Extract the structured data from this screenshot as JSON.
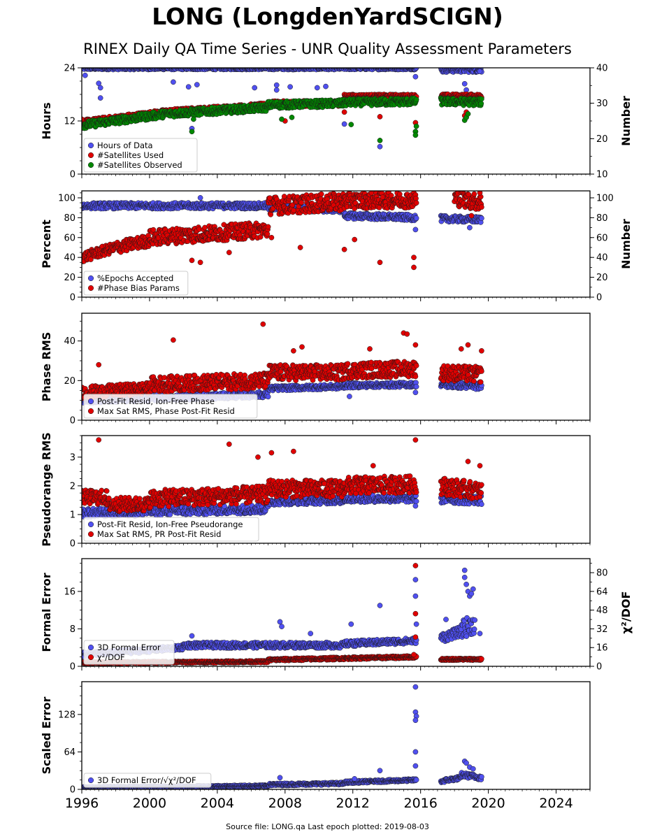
{
  "title": "LONG (LongdenYardSCIGN)",
  "subtitle": "RINEX Daily QA Time Series - UNR Quality Assessment Parameters",
  "footer": "Source file: LONG.qa Last epoch plotted: 2019-08-03",
  "colors": {
    "blue": "#5050f0",
    "red": "#e00000",
    "green": "#008800"
  },
  "chart_data": [
    {
      "type": "scatter",
      "ylabel": "Hours",
      "ylim": [
        0,
        24
      ],
      "yticks": [
        0,
        12,
        24
      ],
      "y2label": "Number",
      "y2lim": [
        10,
        40
      ],
      "y2ticks": [
        10,
        20,
        30,
        40
      ],
      "legend_position": "lower-left",
      "series": [
        {
          "name": "Hours of Data",
          "axis": "left",
          "color": "blue",
          "segments": [
            [
              1996.0,
              23.9,
              2015.75,
              23.9,
              0.3
            ],
            [
              2017.2,
              23.6,
              2019.6,
              23.6,
              0.6
            ]
          ],
          "points": [
            [
              1996.2,
              22.3
            ],
            [
              1997.0,
              20.5
            ],
            [
              1997.1,
              19.5
            ],
            [
              1997.1,
              17.2
            ],
            [
              2001.4,
              20.8
            ],
            [
              2002.3,
              19.7
            ],
            [
              2002.8,
              20.2
            ],
            [
              2002.5,
              10.3
            ],
            [
              2006.2,
              19.5
            ],
            [
              2007.5,
              19.0
            ],
            [
              2007.5,
              20.1
            ],
            [
              2008.3,
              19.7
            ],
            [
              2009.9,
              19.5
            ],
            [
              2010.4,
              19.8
            ],
            [
              2011.5,
              11.3
            ],
            [
              2013.6,
              6.2
            ],
            [
              2015.7,
              22.0
            ],
            [
              2018.6,
              20.4
            ],
            [
              2018.7,
              19.0
            ],
            [
              2019.5,
              23.2
            ]
          ]
        },
        {
          "name": "#Satellites Used",
          "axis": "right",
          "color": "red",
          "segments": [
            [
              1996.0,
              24.5,
              2001.0,
              27.5,
              0.8
            ],
            [
              2001.0,
              27.5,
              2007.0,
              29.3,
              0.8
            ],
            [
              2007.0,
              29.8,
              2011.5,
              30.0,
              0.8
            ],
            [
              2011.5,
              32.0,
              2015.75,
              32.0,
              0.5
            ],
            [
              2017.2,
              32.0,
              2019.6,
              32.0,
              0.6
            ]
          ],
          "points": [
            [
              1996.0,
              25.5
            ],
            [
              2008.0,
              25.0
            ],
            [
              2011.5,
              27.5
            ],
            [
              2013.6,
              26.2
            ],
            [
              2015.7,
              24.5
            ],
            [
              2015.7,
              22.0
            ],
            [
              2018.6,
              26.5
            ],
            [
              2018.7,
              27.5
            ]
          ]
        },
        {
          "name": "#Satellites Observed",
          "axis": "right",
          "color": "green",
          "segments": [
            [
              1996.0,
              23.8,
              2001.0,
              27.0,
              1.0
            ],
            [
              2001.0,
              27.0,
              2007.0,
              28.8,
              1.0
            ],
            [
              2007.0,
              29.5,
              2011.5,
              30.0,
              1.0
            ],
            [
              2011.5,
              30.2,
              2015.75,
              30.5,
              1.0
            ],
            [
              2017.2,
              30.5,
              2019.6,
              30.3,
              1.0
            ]
          ],
          "points": [
            [
              2002.5,
              22.0
            ],
            [
              2002.6,
              25.5
            ],
            [
              2007.8,
              25.5
            ],
            [
              2008.4,
              26.0
            ],
            [
              2011.9,
              24.0
            ],
            [
              2013.6,
              19.5
            ],
            [
              2015.7,
              22.0
            ],
            [
              2015.7,
              21.0
            ],
            [
              2015.75,
              23.5
            ],
            [
              2018.6,
              25.2
            ],
            [
              2018.7,
              26.0
            ],
            [
              2018.8,
              27.0
            ]
          ]
        }
      ]
    },
    {
      "type": "scatter",
      "ylabel": "Percent",
      "ylim": [
        0,
        107
      ],
      "yticks": [
        0,
        20,
        40,
        60,
        80,
        100
      ],
      "y2label": "Number",
      "y2lim": [
        0,
        107
      ],
      "y2ticks": [
        0,
        20,
        40,
        60,
        80,
        100
      ],
      "legend_position": "lower-left",
      "series": [
        {
          "name": "%Epochs Accepted",
          "axis": "left",
          "color": "blue",
          "segments": [
            [
              1996.0,
              92.0,
              2007.0,
              92.0,
              3.0
            ],
            [
              2007.0,
              90.0,
              2011.5,
              88.0,
              3.0
            ],
            [
              2011.5,
              82.0,
              2015.75,
              80.0,
              3.0
            ],
            [
              2017.2,
              79.0,
              2019.6,
              78.0,
              3.0
            ]
          ],
          "points": [
            [
              2003.0,
              100.0
            ],
            [
              2015.7,
              68.0
            ],
            [
              2015.7,
              96.0
            ],
            [
              2018.9,
              70.0
            ]
          ]
        },
        {
          "name": "#Phase Bias Params",
          "axis": "right",
          "color": "red",
          "segments": [
            [
              1996.0,
              40.0,
              1998.0,
              50.0,
              5.0
            ],
            [
              1998.0,
              50.0,
              2000.0,
              57.0,
              6.0
            ],
            [
              2000.0,
              60.0,
              2007.0,
              68.0,
              8.0
            ],
            [
              2007.0,
              92.0,
              2011.5,
              96.0,
              9.0
            ],
            [
              2011.5,
              97.0,
              2015.75,
              98.0,
              8.0
            ],
            [
              2018.0,
              100.0,
              2019.6,
              95.0,
              8.0
            ]
          ],
          "points": [
            [
              2003.0,
              35.0
            ],
            [
              2002.5,
              37.0
            ],
            [
              2004.7,
              45.0
            ],
            [
              2007.2,
              60.0
            ],
            [
              2008.9,
              50.0
            ],
            [
              2011.5,
              48.0
            ],
            [
              2012.1,
              58.0
            ],
            [
              2013.6,
              35.0
            ],
            [
              2015.6,
              40.0
            ],
            [
              2015.6,
              30.0
            ],
            [
              2019.0,
              82.0
            ],
            [
              2019.5,
              105.0
            ]
          ]
        }
      ]
    },
    {
      "type": "scatter",
      "ylabel": "Phase RMS",
      "ylim": [
        0,
        54
      ],
      "yticks": [
        0,
        20,
        40
      ],
      "legend_position": "lower-left",
      "series": [
        {
          "name": "Post-Fit Resid, Ion-Free Phase",
          "axis": "left",
          "color": "blue",
          "segments": [
            [
              1996.0,
              10.0,
              2007.0,
              13.0,
              1.5
            ],
            [
              2007.0,
              16.0,
              2011.5,
              17.0,
              1.2
            ],
            [
              2011.5,
              17.5,
              2015.75,
              18.0,
              1.2
            ],
            [
              2017.2,
              18.0,
              2019.6,
              17.0,
              1.5
            ]
          ],
          "points": [
            [
              2011.8,
              12.0
            ],
            [
              2015.7,
              14.0
            ]
          ]
        },
        {
          "name": "Max Sat RMS, Phase Post-Fit Resid",
          "axis": "left",
          "color": "red",
          "segments": [
            [
              1996.0,
              14.0,
              2000.0,
              16.0,
              3.0
            ],
            [
              2000.0,
              18.0,
              2007.0,
              20.0,
              4.0
            ],
            [
              2007.0,
              24.0,
              2011.5,
              24.0,
              4.0
            ],
            [
              2011.5,
              25.0,
              2015.75,
              26.0,
              4.0
            ],
            [
              2017.2,
              24.0,
              2019.6,
              23.0,
              4.0
            ]
          ],
          "points": [
            [
              1997.0,
              28.0
            ],
            [
              2001.4,
              40.5
            ],
            [
              2006.7,
              48.5
            ],
            [
              2008.5,
              35.0
            ],
            [
              2009.0,
              37.0
            ],
            [
              2013.0,
              36.0
            ],
            [
              2015.0,
              44.0
            ],
            [
              2015.2,
              43.5
            ],
            [
              2015.7,
              38.0
            ],
            [
              2018.4,
              36.0
            ],
            [
              2018.8,
              38.0
            ],
            [
              2019.6,
              35.0
            ]
          ]
        }
      ]
    },
    {
      "type": "scatter",
      "ylabel": "Pseudorange RMS",
      "ylim": [
        0,
        3.75
      ],
      "yticks": [
        0,
        1,
        2,
        3
      ],
      "legend_position": "lower-left",
      "series": [
        {
          "name": "Post-Fit Resid, Ion-Free Pseudorange",
          "axis": "left",
          "color": "blue",
          "segments": [
            [
              1996.0,
              1.05,
              2007.0,
              1.2,
              0.15
            ],
            [
              2007.0,
              1.45,
              2011.5,
              1.5,
              0.12
            ],
            [
              2011.5,
              1.55,
              2015.75,
              1.55,
              0.12
            ],
            [
              2017.2,
              1.55,
              2019.6,
              1.5,
              0.15
            ]
          ],
          "points": [
            [
              2015.7,
              1.3
            ]
          ]
        },
        {
          "name": "Max Sat RMS, PR Post-Fit Resid",
          "axis": "left",
          "color": "red",
          "segments": [
            [
              1996.0,
              1.6,
              1997.5,
              1.6,
              0.25
            ],
            [
              1997.5,
              1.35,
              2000.0,
              1.35,
              0.25
            ],
            [
              2000.0,
              1.55,
              2007.0,
              1.7,
              0.3
            ],
            [
              2007.0,
              1.9,
              2011.5,
              1.9,
              0.3
            ],
            [
              2011.5,
              2.0,
              2015.75,
              2.05,
              0.3
            ],
            [
              2017.2,
              2.0,
              2019.6,
              1.8,
              0.3
            ]
          ],
          "points": [
            [
              1997.0,
              3.6
            ],
            [
              2004.7,
              3.45
            ],
            [
              2006.4,
              3.0
            ],
            [
              2007.2,
              3.15
            ],
            [
              2008.5,
              3.2
            ],
            [
              2015.7,
              3.6
            ],
            [
              2013.2,
              2.7
            ],
            [
              2018.8,
              2.85
            ],
            [
              2019.5,
              2.7
            ]
          ]
        }
      ]
    },
    {
      "type": "scatter",
      "ylabel": "Formal Error",
      "ylim": [
        0,
        23
      ],
      "yticks": [
        0,
        8,
        16
      ],
      "y2label": "χ²/DOF",
      "y2lim": [
        0,
        92
      ],
      "y2ticks": [
        0,
        16,
        32,
        48,
        64,
        80
      ],
      "legend_position": "lower-left",
      "series": [
        {
          "name": "3D Formal Error",
          "axis": "left",
          "color": "blue",
          "segments": [
            [
              1996.0,
              2.5,
              2002.0,
              4.0,
              0.5
            ],
            [
              2002.0,
              4.5,
              2011.5,
              4.5,
              0.6
            ],
            [
              2011.5,
              4.8,
              2015.75,
              5.5,
              0.6
            ],
            [
              2017.2,
              6.0,
              2018.4,
              7.5,
              1.0
            ],
            [
              2018.4,
              8.0,
              2019.2,
              9.0,
              2.0
            ]
          ],
          "points": [
            [
              2002.5,
              6.5
            ],
            [
              2007.7,
              9.5
            ],
            [
              2007.8,
              8.5
            ],
            [
              2009.5,
              7.0
            ],
            [
              2011.9,
              9.0
            ],
            [
              2013.6,
              13.0
            ],
            [
              2015.7,
              18.5
            ],
            [
              2015.7,
              15.0
            ],
            [
              2015.75,
              9.0
            ],
            [
              2017.5,
              10.0
            ],
            [
              2018.6,
              20.5
            ],
            [
              2018.6,
              19.0
            ],
            [
              2018.7,
              17.5
            ],
            [
              2018.8,
              16.0
            ],
            [
              2018.9,
              15.0
            ],
            [
              2019.0,
              15.5
            ],
            [
              2019.1,
              16.5
            ],
            [
              2019.5,
              7.0
            ]
          ]
        },
        {
          "name": "χ²/DOF",
          "axis": "right",
          "color": "red",
          "segments": [
            [
              1996.0,
              3.0,
              2007.0,
              4.0,
              0.8
            ],
            [
              2007.0,
              5.5,
              2015.75,
              8.0,
              1.0
            ],
            [
              2017.2,
              6.0,
              2019.6,
              6.0,
              0.8
            ]
          ],
          "points": [
            [
              2015.7,
              86.0
            ],
            [
              2015.7,
              45.0
            ],
            [
              2015.7,
              25.0
            ],
            [
              2015.6,
              10.0
            ]
          ]
        }
      ]
    },
    {
      "type": "scatter",
      "ylabel": "Scaled Error",
      "ylim": [
        0,
        184
      ],
      "yticks": [
        0,
        64,
        128
      ],
      "legend_position": "lower-left",
      "series": [
        {
          "name": "3D Formal Error/√χ²/DOF",
          "axis": "left",
          "color": "blue",
          "segments": [
            [
              1996.0,
              3.0,
              2007.0,
              6.0,
              1.5
            ],
            [
              2007.0,
              8.0,
              2011.5,
              10.0,
              2.0
            ],
            [
              2011.5,
              12.0,
              2015.75,
              16.0,
              2.0
            ],
            [
              2017.2,
              14.0,
              2018.4,
              20.0,
              3.0
            ],
            [
              2018.4,
              25.0,
              2019.6,
              20.0,
              4.0
            ]
          ],
          "points": [
            [
              2007.7,
              20.0
            ],
            [
              2012.1,
              18.0
            ],
            [
              2013.6,
              32.0
            ],
            [
              2015.7,
              175.0
            ],
            [
              2015.7,
              132.0
            ],
            [
              2015.75,
              125.0
            ],
            [
              2015.7,
              118.0
            ],
            [
              2015.7,
              64.0
            ],
            [
              2015.7,
              40.0
            ],
            [
              2018.6,
              48.0
            ],
            [
              2018.7,
              45.0
            ],
            [
              2018.9,
              38.0
            ],
            [
              2019.1,
              35.0
            ]
          ]
        }
      ]
    }
  ],
  "x_axis": {
    "lim": [
      1996,
      2026
    ],
    "ticks": [
      1996,
      2000,
      2004,
      2008,
      2012,
      2016,
      2020,
      2024
    ]
  }
}
